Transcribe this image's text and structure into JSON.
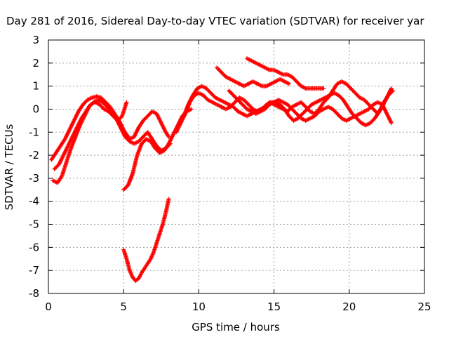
{
  "chart_data": {
    "type": "scatter",
    "title": "Day 281 of 2016, Sidereal Day-to-day VTEC variation (SDTVAR) for receiver yar",
    "xlabel": "GPS time / hours",
    "ylabel": "SDTVAR / TECUs",
    "xlim": [
      0,
      25
    ],
    "ylim": [
      -8,
      3
    ],
    "xticks": [
      0,
      5,
      10,
      15,
      20,
      25
    ],
    "yticks": [
      3,
      2,
      1,
      0,
      -1,
      -2,
      -3,
      -4,
      -5,
      -6,
      -7,
      -8
    ],
    "grid": true,
    "legend": "none",
    "marker": "+",
    "color": "#ff0000",
    "series": [
      {
        "x": [
          0.2,
          0.5,
          0.8,
          1.1,
          1.4,
          1.7,
          2.0,
          2.3,
          2.6,
          2.9,
          3.2,
          3.5,
          3.8,
          4.1,
          4.4,
          4.7,
          5.0,
          5.2,
          5.4,
          5.7,
          6.0,
          6.3,
          6.6,
          6.9,
          7.2,
          7.5,
          7.8,
          8.0
        ],
        "y": [
          -2.2,
          -1.9,
          -1.6,
          -1.3,
          -0.9,
          -0.5,
          -0.1,
          0.2,
          0.4,
          0.5,
          0.55,
          0.5,
          0.3,
          0.1,
          -0.2,
          -0.5,
          -0.9,
          -1.1,
          -1.3,
          -1.2,
          -0.8,
          -0.5,
          -0.3,
          -0.1,
          -0.2,
          -0.6,
          -1.0,
          -1.2
        ]
      },
      {
        "x": [
          0.3,
          0.6,
          0.9,
          1.2,
          1.5,
          1.8,
          2.1,
          2.4,
          2.7,
          3.0,
          3.3,
          3.6,
          3.9,
          4.2,
          4.5,
          4.8,
          5.1,
          5.4,
          5.7,
          6.0,
          6.3,
          6.6,
          6.9,
          7.2,
          7.5,
          7.8,
          8.1
        ],
        "y": [
          -3.1,
          -3.2,
          -2.9,
          -2.3,
          -1.7,
          -1.2,
          -0.7,
          -0.3,
          0.1,
          0.3,
          0.4,
          0.3,
          0.1,
          -0.1,
          -0.4,
          -0.8,
          -1.2,
          -1.4,
          -1.5,
          -1.4,
          -1.2,
          -1.0,
          -1.3,
          -1.6,
          -1.8,
          -1.7,
          -1.5
        ]
      },
      {
        "x": [
          0.4,
          0.7,
          1.0,
          1.3,
          1.6,
          1.9,
          2.2,
          2.5,
          2.8,
          3.1,
          3.4,
          3.7,
          4.0,
          4.3,
          4.6,
          4.9,
          5.2
        ],
        "y": [
          -2.6,
          -2.4,
          -2.0,
          -1.6,
          -1.2,
          -0.8,
          -0.4,
          -0.1,
          0.2,
          0.3,
          0.2,
          0.0,
          -0.1,
          -0.3,
          -0.5,
          -0.3,
          0.3
        ]
      },
      {
        "x": [
          5.0,
          5.3,
          5.6,
          5.9,
          6.2,
          6.5,
          6.8,
          7.1,
          7.4,
          7.7,
          8.0,
          8.3,
          8.6,
          8.9,
          9.2,
          9.5
        ],
        "y": [
          -3.5,
          -3.3,
          -2.8,
          -2.0,
          -1.5,
          -1.3,
          -1.4,
          -1.7,
          -1.9,
          -1.8,
          -1.5,
          -1.1,
          -0.7,
          -0.3,
          -0.1,
          0.0
        ]
      },
      {
        "x": [
          5.0,
          5.2,
          5.4,
          5.6,
          5.8,
          6.0,
          6.2,
          6.4,
          6.6,
          6.8,
          7.0,
          7.2,
          7.4,
          7.6,
          7.8,
          8.0
        ],
        "y": [
          -6.1,
          -6.5,
          -7.0,
          -7.3,
          -7.45,
          -7.35,
          -7.1,
          -6.9,
          -6.7,
          -6.5,
          -6.2,
          -5.8,
          -5.4,
          -5.0,
          -4.5,
          -3.9
        ]
      },
      {
        "x": [
          8.5,
          8.8,
          9.1,
          9.4,
          9.7,
          10.0,
          10.3,
          10.6,
          10.9,
          11.2,
          11.5,
          11.8,
          12.1,
          12.4,
          12.7,
          13.0,
          13.3,
          13.6,
          13.9,
          14.2,
          14.5,
          14.8,
          15.1,
          15.4,
          15.7,
          16.0,
          16.3,
          16.6,
          16.9,
          17.2,
          17.5,
          17.8,
          18.1,
          18.4,
          18.7,
          19.0,
          19.3,
          19.6,
          19.9,
          20.2,
          20.5,
          20.8,
          21.1,
          21.4,
          21.7,
          22.0,
          22.3,
          22.6,
          22.9
        ],
        "y": [
          -1.0,
          -0.6,
          -0.2,
          0.3,
          0.6,
          0.7,
          0.6,
          0.4,
          0.3,
          0.2,
          0.1,
          0.0,
          0.1,
          0.3,
          0.5,
          0.4,
          0.2,
          0.0,
          -0.1,
          0.0,
          0.2,
          0.3,
          0.3,
          0.2,
          0.0,
          -0.3,
          -0.5,
          -0.4,
          -0.2,
          0.0,
          0.2,
          0.3,
          0.4,
          0.5,
          0.6,
          0.7,
          0.6,
          0.4,
          0.1,
          -0.2,
          -0.4,
          -0.6,
          -0.7,
          -0.6,
          -0.4,
          -0.1,
          0.3,
          0.6,
          0.8
        ]
      },
      {
        "x": [
          9.0,
          9.3,
          9.6,
          9.9,
          10.2,
          10.5,
          10.8,
          11.1,
          11.4,
          11.7,
          12.0,
          12.3,
          12.6,
          12.9,
          13.2,
          13.5,
          13.8,
          14.1,
          14.4,
          14.7,
          15.0,
          15.3,
          15.6,
          15.9,
          16.2,
          16.5,
          16.8,
          17.1,
          17.4,
          17.7,
          18.0,
          18.3,
          18.6,
          18.9,
          19.2,
          19.5,
          19.8,
          20.1,
          20.4,
          20.7,
          21.0,
          21.3,
          21.6,
          21.9,
          22.2,
          22.5,
          22.8
        ],
        "y": [
          -0.3,
          0.2,
          0.6,
          0.9,
          1.0,
          0.9,
          0.7,
          0.5,
          0.4,
          0.3,
          0.2,
          0.1,
          -0.1,
          -0.2,
          -0.3,
          -0.2,
          -0.1,
          0.0,
          0.1,
          0.3,
          0.2,
          0.1,
          0.0,
          -0.1,
          0.1,
          0.2,
          0.3,
          0.1,
          -0.1,
          -0.2,
          0.0,
          0.3,
          0.5,
          0.8,
          1.1,
          1.2,
          1.1,
          0.9,
          0.7,
          0.5,
          0.4,
          0.2,
          0.0,
          -0.2,
          0.1,
          0.5,
          0.9
        ]
      },
      {
        "x": [
          11.2,
          11.5,
          11.8,
          12.1,
          12.4,
          12.7,
          13.0,
          13.3,
          13.6,
          13.9,
          14.2,
          14.5,
          14.8,
          15.1,
          15.4,
          15.7,
          16.0
        ],
        "y": [
          1.8,
          1.6,
          1.4,
          1.3,
          1.2,
          1.1,
          1.0,
          1.1,
          1.2,
          1.1,
          1.0,
          1.0,
          1.1,
          1.2,
          1.3,
          1.2,
          1.1
        ]
      },
      {
        "x": [
          13.2,
          13.5,
          13.8,
          14.1,
          14.4,
          14.7,
          15.0,
          15.3,
          15.6,
          15.9,
          16.2,
          16.5,
          16.8,
          17.1,
          17.4,
          17.7,
          18.0,
          18.3
        ],
        "y": [
          2.2,
          2.1,
          2.0,
          1.9,
          1.8,
          1.7,
          1.7,
          1.6,
          1.5,
          1.5,
          1.4,
          1.2,
          1.0,
          0.9,
          0.9,
          0.9,
          0.9,
          0.9
        ]
      },
      {
        "x": [
          12.0,
          12.3,
          12.6,
          12.9,
          13.2,
          13.5,
          13.8,
          14.1,
          14.4,
          14.7,
          15.0,
          15.3,
          15.6,
          15.9,
          16.2,
          16.5,
          16.8,
          17.1,
          17.4,
          17.7,
          18.0,
          18.3,
          18.6,
          18.9,
          19.2,
          19.5,
          19.8,
          20.1,
          20.4,
          20.7,
          21.0,
          21.3,
          21.6,
          21.9,
          22.2,
          22.5,
          22.8
        ],
        "y": [
          0.8,
          0.6,
          0.4,
          0.2,
          0.0,
          -0.1,
          -0.2,
          -0.1,
          0.0,
          0.2,
          0.3,
          0.4,
          0.3,
          0.2,
          0.0,
          -0.2,
          -0.4,
          -0.5,
          -0.4,
          -0.3,
          -0.1,
          0.0,
          0.1,
          0.0,
          -0.2,
          -0.4,
          -0.5,
          -0.4,
          -0.3,
          -0.2,
          -0.1,
          0.0,
          0.2,
          0.3,
          0.2,
          -0.2,
          -0.6
        ]
      }
    ]
  }
}
